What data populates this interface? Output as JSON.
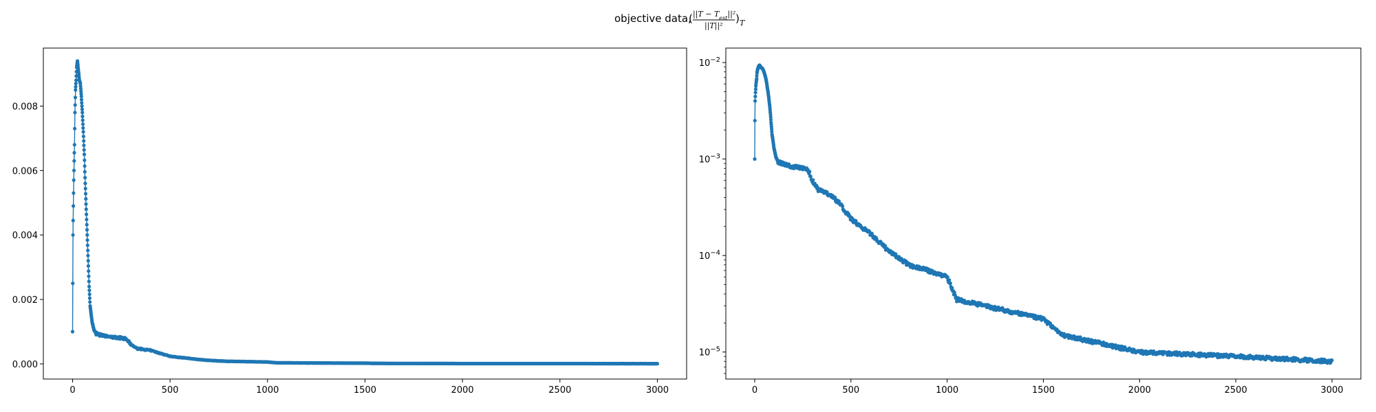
{
  "figure": {
    "title_prefix": "objective data,",
    "title_numerator": "||T − T",
    "title_numerator_sub": "est",
    "title_numerator_sup": "||²",
    "title_denominator": "||T||²",
    "title_subscript": "T"
  },
  "chart_data": [
    {
      "type": "line",
      "markers": true,
      "scale": "linear",
      "color": "#1f77b4",
      "xlim": [
        -150,
        3150
      ],
      "ylim": [
        -0.00047,
        0.0098
      ],
      "xticks": [
        0,
        500,
        1000,
        1500,
        2000,
        2500,
        3000
      ],
      "xtick_labels": [
        "0",
        "500",
        "1000",
        "1500",
        "2000",
        "2500",
        "3000"
      ],
      "yticks": [
        0,
        0.002,
        0.004,
        0.006,
        0.008
      ],
      "ytick_labels": [
        "0.000",
        "0.002",
        "0.004",
        "0.006",
        "0.008"
      ],
      "series": [
        {
          "x": [
            0,
            2,
            4,
            6,
            8,
            10,
            12,
            15,
            18,
            21,
            25,
            30,
            35,
            40,
            45,
            50,
            55,
            60,
            65,
            70,
            75,
            80,
            85,
            90,
            100,
            110,
            120,
            150,
            200,
            260,
            280,
            300,
            330,
            400,
            450,
            500,
            600,
            700,
            800,
            900,
            1000,
            1050,
            1200,
            1500,
            1600,
            2000,
            2500,
            3000
          ],
          "y": [
            0.001,
            0.004,
            0.0049,
            0.0057,
            0.0063,
            0.0068,
            0.0078,
            0.0085,
            0.0088,
            0.0092,
            0.0094,
            0.0091,
            0.0088,
            0.0087,
            0.0083,
            0.0078,
            0.0072,
            0.0065,
            0.0056,
            0.0048,
            0.004,
            0.0032,
            0.0024,
            0.0018,
            0.0013,
            0.00105,
            0.00095,
            0.00088,
            0.00083,
            0.0008,
            0.00075,
            0.0006,
            0.00048,
            0.00042,
            0.00033,
            0.00024,
            0.00017,
            0.00011,
            8e-05,
            7e-05,
            6e-05,
            3.5e-05,
            3e-05,
            2.2e-05,
            1.5e-05,
            1e-05,
            9e-06,
            8e-06
          ]
        }
      ]
    },
    {
      "type": "line",
      "markers": true,
      "scale": "log",
      "color": "#1f77b4",
      "xlim": [
        -150,
        3150
      ],
      "ylim_exp": [
        -5.28,
        -1.85
      ],
      "xticks": [
        0,
        500,
        1000,
        1500,
        2000,
        2500,
        3000
      ],
      "xtick_labels": [
        "0",
        "500",
        "1000",
        "1500",
        "2000",
        "2500",
        "3000"
      ],
      "yticks": [
        -5,
        -4,
        -3,
        -2
      ],
      "ytick_base": "10",
      "ytick_exponents": [
        "−5",
        "−4",
        "−3",
        "−2"
      ],
      "series": [
        {
          "x": [
            0,
            2,
            4,
            6,
            8,
            10,
            12,
            15,
            18,
            21,
            25,
            30,
            35,
            40,
            45,
            50,
            55,
            60,
            65,
            70,
            75,
            80,
            85,
            90,
            100,
            110,
            120,
            150,
            200,
            260,
            280,
            300,
            330,
            400,
            450,
            500,
            600,
            700,
            800,
            900,
            1000,
            1050,
            1200,
            1500,
            1600,
            2000,
            2500,
            3000
          ],
          "y": [
            0.001,
            0.004,
            0.0049,
            0.0057,
            0.0063,
            0.0068,
            0.0078,
            0.0085,
            0.0088,
            0.0092,
            0.0094,
            0.0091,
            0.0088,
            0.0087,
            0.0083,
            0.0078,
            0.0072,
            0.0065,
            0.0056,
            0.0048,
            0.004,
            0.0032,
            0.0024,
            0.0018,
            0.0013,
            0.00105,
            0.00095,
            0.00088,
            0.00083,
            0.0008,
            0.00075,
            0.0006,
            0.00048,
            0.00042,
            0.00033,
            0.00024,
            0.00017,
            0.00011,
            8e-05,
            7e-05,
            6e-05,
            3.5e-05,
            3e-05,
            2.2e-05,
            1.5e-05,
            1e-05,
            9e-06,
            8e-06
          ]
        }
      ]
    }
  ]
}
